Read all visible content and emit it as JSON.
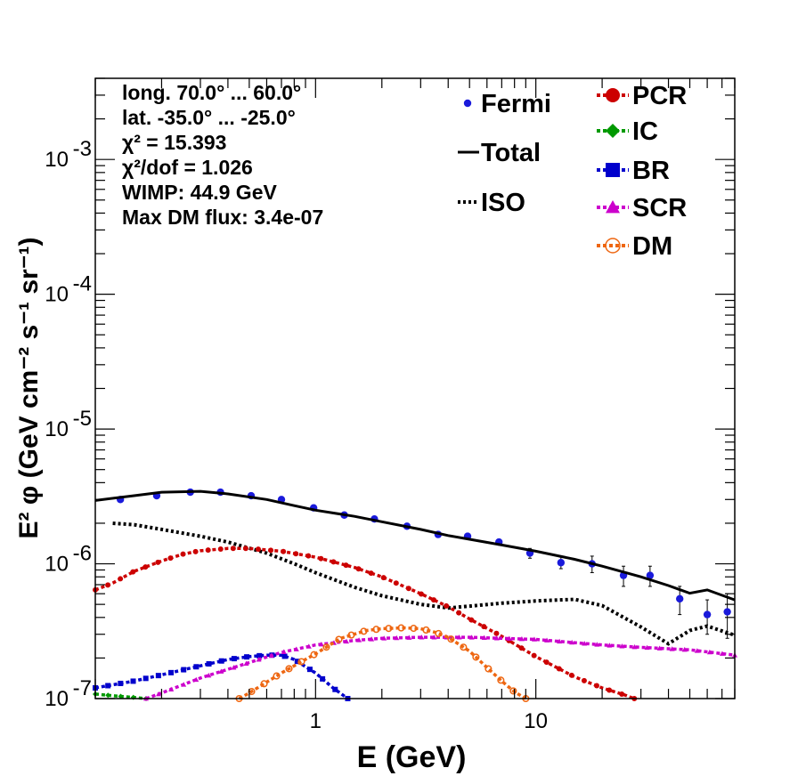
{
  "chart_data": {
    "type": "scatter",
    "xlabel": "E (GeV)",
    "ylabel": "E² φ (GeV cm⁻² s⁻¹ sr⁻¹)",
    "x_scale": "log",
    "y_scale": "log",
    "xlim": [
      0.1,
      80
    ],
    "ylim": [
      1e-07,
      0.004
    ],
    "x_ticks": [
      {
        "value": 1,
        "label": "1"
      },
      {
        "value": 10,
        "label": "10"
      }
    ],
    "y_ticks": [
      {
        "value": 1e-07,
        "base": "10",
        "exp": "-7"
      },
      {
        "value": 1e-06,
        "base": "10",
        "exp": "-6"
      },
      {
        "value": 1e-05,
        "base": "10",
        "exp": "-5"
      },
      {
        "value": 0.0001,
        "base": "10",
        "exp": "-4"
      },
      {
        "value": 0.001,
        "base": "10",
        "exp": "-3"
      }
    ],
    "grid": false,
    "annotations": [
      "long. 70.0° ... 60.0°",
      "lat. -35.0° ... -25.0°",
      "χ² = 15.393",
      "χ²/dof = 1.026",
      "WIMP: 44.9 GeV",
      "Max DM flux: 3.4e-07"
    ],
    "legend_placement": "top-right",
    "series": [
      {
        "name": "Fermi",
        "style": "points-errors",
        "color": "#1a1adb",
        "x": [
          0.13,
          0.19,
          0.27,
          0.37,
          0.51,
          0.7,
          0.98,
          1.35,
          1.85,
          2.6,
          3.6,
          4.9,
          6.8,
          9.4,
          13,
          18,
          25,
          33,
          45,
          60,
          74
        ],
        "y": [
          3e-06,
          3.2e-06,
          3.4e-06,
          3.4e-06,
          3.2e-06,
          3e-06,
          2.6e-06,
          2.3e-06,
          2.15e-06,
          1.9e-06,
          1.65e-06,
          1.6e-06,
          1.45e-06,
          1.2e-06,
          1.02e-06,
          1e-06,
          8.2e-07,
          8.2e-07,
          5.5e-07,
          4.2e-07,
          4.4e-07
        ],
        "err": [
          4e-08,
          4e-08,
          4e-08,
          4e-08,
          4e-08,
          4e-08,
          4e-08,
          4e-08,
          4e-08,
          5e-08,
          5e-08,
          5e-08,
          7e-08,
          1e-07,
          1e-07,
          1.4e-07,
          1.4e-07,
          1.4e-07,
          1.3e-07,
          1.2e-07,
          1.6e-07
        ]
      },
      {
        "name": "Total",
        "style": "solid",
        "color": "#000000",
        "x": [
          0.1,
          0.15,
          0.2,
          0.3,
          0.4,
          0.6,
          0.8,
          1,
          1.5,
          2,
          3,
          4,
          5,
          7,
          10,
          15,
          20,
          30,
          40,
          50,
          60,
          80
        ],
        "y": [
          2.95e-06,
          3.2e-06,
          3.4e-06,
          3.45e-06,
          3.3e-06,
          3e-06,
          2.7e-06,
          2.5e-06,
          2.25e-06,
          2.05e-06,
          1.8e-06,
          1.62e-06,
          1.52e-06,
          1.38e-06,
          1.24e-06,
          1.08e-06,
          9.6e-07,
          8e-07,
          6.9e-07,
          6.05e-07,
          6.4e-07,
          5.4e-07
        ]
      },
      {
        "name": "ISO",
        "style": "dotted",
        "color": "#000000",
        "x": [
          0.12,
          0.15,
          0.2,
          0.3,
          0.4,
          0.6,
          0.8,
          1,
          1.5,
          2,
          3,
          4,
          5,
          7,
          10,
          15,
          20,
          30,
          40,
          50,
          60,
          80
        ],
        "y": [
          2e-06,
          1.95e-06,
          1.8e-06,
          1.6e-06,
          1.45e-06,
          1.2e-06,
          1e-06,
          8.6e-07,
          6.7e-07,
          5.8e-07,
          5e-07,
          4.7e-07,
          4.85e-07,
          5.1e-07,
          5.3e-07,
          5.45e-07,
          4.9e-07,
          3.4e-07,
          2.55e-07,
          3.2e-07,
          3.45e-07,
          2.95e-07
        ]
      },
      {
        "name": "PCR",
        "style": "markers-dashed",
        "color": "#cc0000",
        "x": [
          0.1,
          0.12,
          0.15,
          0.2,
          0.25,
          0.3,
          0.4,
          0.5,
          0.7,
          1,
          1.5,
          2,
          3,
          4,
          5,
          7,
          10,
          15,
          20,
          25,
          28
        ],
        "y": [
          6.4e-07,
          7.2e-07,
          8.8e-07,
          1.05e-06,
          1.18e-06,
          1.25e-06,
          1.3e-06,
          1.3e-06,
          1.24e-06,
          1.12e-06,
          9.4e-07,
          8e-07,
          6e-07,
          4.8e-07,
          3.9e-07,
          2.9e-07,
          2.05e-07,
          1.45e-07,
          1.2e-07,
          1.07e-07,
          1e-07
        ]
      },
      {
        "name": "IC",
        "style": "markers-dashed",
        "color": "#009900",
        "x": [
          0.1,
          0.12,
          0.15,
          0.17
        ],
        "y": [
          1.08e-07,
          1.05e-07,
          1.02e-07,
          1e-07
        ]
      },
      {
        "name": "BR",
        "style": "markers-dashed",
        "color": "#0000cc",
        "x": [
          0.1,
          0.15,
          0.2,
          0.3,
          0.4,
          0.5,
          0.6,
          0.7,
          0.8,
          1,
          1.2,
          1.4
        ],
        "y": [
          1.2e-07,
          1.35e-07,
          1.5e-07,
          1.75e-07,
          1.95e-07,
          2.05e-07,
          2.1e-07,
          2.1e-07,
          1.95e-07,
          1.55e-07,
          1.2e-07,
          1e-07
        ]
      },
      {
        "name": "SCR",
        "style": "markers-dashed",
        "color": "#cc00cc",
        "x": [
          0.17,
          0.2,
          0.3,
          0.5,
          0.7,
          1,
          1.5,
          2,
          3,
          5,
          7,
          10,
          15,
          20,
          30,
          50,
          80
        ],
        "y": [
          1e-07,
          1.1e-07,
          1.42e-07,
          1.85e-07,
          2.2e-07,
          2.5e-07,
          2.7e-07,
          2.8e-07,
          2.85e-07,
          2.85e-07,
          2.8e-07,
          2.75e-07,
          2.6e-07,
          2.5e-07,
          2.4e-07,
          2.3e-07,
          2.1e-07
        ]
      },
      {
        "name": "DM",
        "style": "markers-dashed",
        "color": "#ee6611",
        "x": [
          0.45,
          0.5,
          0.7,
          1,
          1.3,
          1.7,
          2,
          2.5,
          3,
          3.5,
          4,
          5,
          6,
          7,
          8,
          9
        ],
        "y": [
          1e-07,
          1.1e-07,
          1.55e-07,
          2.15e-07,
          2.8e-07,
          3.2e-07,
          3.3e-07,
          3.35e-07,
          3.3e-07,
          3.1e-07,
          2.85e-07,
          2.25e-07,
          1.7e-07,
          1.35e-07,
          1.12e-07,
          1e-07
        ]
      }
    ]
  }
}
